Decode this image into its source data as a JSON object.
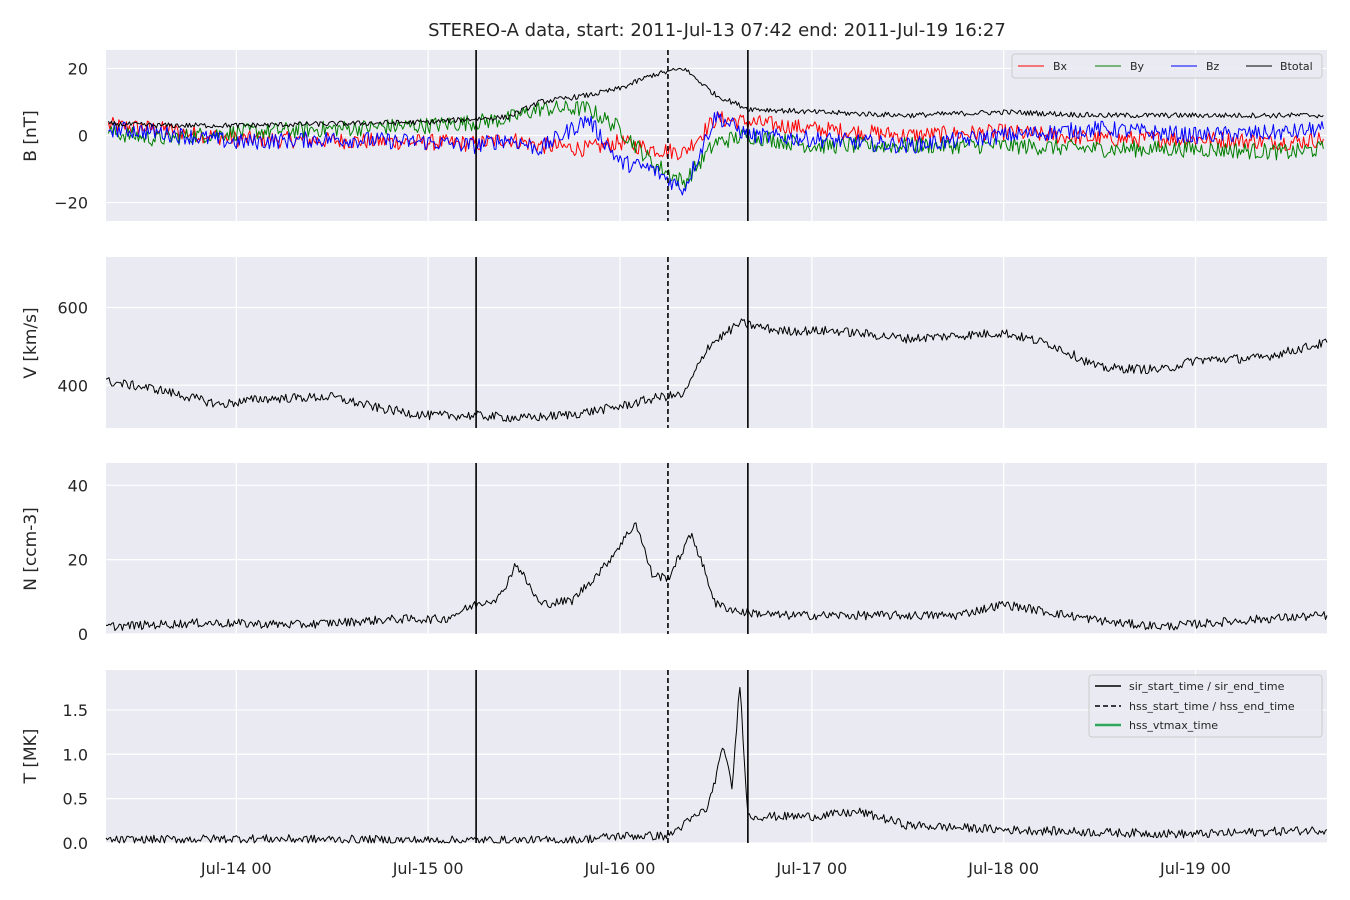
{
  "figure": {
    "title": "STEREO-A data, start: 2011-Jul-13 07:42  end: 2011-Jul-19 16:27"
  },
  "colors": {
    "axes_bg": "#eaeaf2",
    "grid": "#ffffff",
    "Bx": "#ff0000",
    "By": "#008000",
    "Bz": "#0000ff",
    "Btotal": "#000000",
    "sir": "#000000",
    "hss": "#000000",
    "vtmax": "#2ca85a"
  },
  "chart_data": [
    {
      "type": "line",
      "panel": "B",
      "ylabel": "B [nT]",
      "xlim": [
        "2011-07-13 07:42",
        "2011-07-19 16:27"
      ],
      "ylim": [
        -25.5,
        25.5
      ],
      "yticks": [
        -20,
        0,
        20
      ],
      "ytick_labels": [
        "−20",
        "0",
        "20"
      ],
      "grid": true,
      "legend": {
        "placement": "top-right",
        "entries": [
          "Bx",
          "By",
          "Bz",
          "Btotal"
        ]
      },
      "series": [
        {
          "name": "Bx",
          "x": [
            "2011-07-13 08:00",
            "2011-07-13 14:00",
            "2011-07-14 00:00",
            "2011-07-14 12:00",
            "2011-07-15 00:00",
            "2011-07-15 06:00",
            "2011-07-15 10:00",
            "2011-07-15 14:00",
            "2011-07-15 20:00",
            "2011-07-16 00:00",
            "2011-07-16 04:00",
            "2011-07-16 08:00",
            "2011-07-16 12:00",
            "2011-07-16 16:00",
            "2011-07-17 00:00",
            "2011-07-17 12:00",
            "2011-07-18 00:00",
            "2011-07-18 12:00",
            "2011-07-19 00:00",
            "2011-07-19 12:00",
            "2011-07-19 16:00"
          ],
          "values": [
            3,
            2,
            -1,
            -1.5,
            -2,
            -2.5,
            -1,
            -3,
            -4,
            -2,
            -4,
            -5,
            5,
            4,
            2,
            0,
            1,
            -1,
            -1,
            -2,
            -1
          ]
        },
        {
          "name": "By",
          "x": [
            "2011-07-13 08:00",
            "2011-07-13 14:00",
            "2011-07-14 00:00",
            "2011-07-14 12:00",
            "2011-07-15 00:00",
            "2011-07-15 06:00",
            "2011-07-15 10:00",
            "2011-07-15 14:00",
            "2011-07-15 20:00",
            "2011-07-16 00:00",
            "2011-07-16 04:00",
            "2011-07-16 08:00",
            "2011-07-16 12:00",
            "2011-07-16 16:00",
            "2011-07-17 00:00",
            "2011-07-17 12:00",
            "2011-07-18 00:00",
            "2011-07-18 12:00",
            "2011-07-19 00:00",
            "2011-07-19 12:00",
            "2011-07-19 16:00"
          ],
          "values": [
            1,
            -1,
            1,
            2,
            3,
            4,
            5,
            8,
            8,
            2,
            -8,
            -14,
            -2,
            0,
            -3,
            -3,
            -3,
            -4,
            -4,
            -5,
            -4
          ]
        },
        {
          "name": "Bz",
          "x": [
            "2011-07-13 08:00",
            "2011-07-13 14:00",
            "2011-07-14 00:00",
            "2011-07-14 12:00",
            "2011-07-15 00:00",
            "2011-07-15 06:00",
            "2011-07-15 10:00",
            "2011-07-15 14:00",
            "2011-07-15 20:00",
            "2011-07-16 00:00",
            "2011-07-16 04:00",
            "2011-07-16 08:00",
            "2011-07-16 12:00",
            "2011-07-16 16:00",
            "2011-07-17 00:00",
            "2011-07-17 12:00",
            "2011-07-18 00:00",
            "2011-07-18 12:00",
            "2011-07-19 00:00",
            "2011-07-19 12:00",
            "2011-07-19 16:00"
          ],
          "values": [
            2,
            1,
            -2,
            -1,
            -2,
            -3,
            -1,
            -4,
            5,
            -8,
            -10,
            -16,
            6,
            0,
            -1,
            -3,
            0,
            2,
            0,
            1,
            2
          ]
        },
        {
          "name": "Btotal",
          "x": [
            "2011-07-13 08:00",
            "2011-07-13 14:00",
            "2011-07-14 00:00",
            "2011-07-14 12:00",
            "2011-07-15 00:00",
            "2011-07-15 06:00",
            "2011-07-15 10:00",
            "2011-07-15 14:00",
            "2011-07-15 20:00",
            "2011-07-16 00:00",
            "2011-07-16 04:00",
            "2011-07-16 08:00",
            "2011-07-16 12:00",
            "2011-07-16 16:00",
            "2011-07-17 00:00",
            "2011-07-17 12:00",
            "2011-07-18 00:00",
            "2011-07-18 12:00",
            "2011-07-19 00:00",
            "2011-07-19 12:00",
            "2011-07-19 16:00"
          ],
          "values": [
            3.5,
            3,
            3,
            3.5,
            4,
            5,
            5.5,
            10,
            12,
            14,
            18,
            20,
            12,
            8,
            7,
            6,
            7,
            6,
            6,
            6,
            6
          ]
        }
      ]
    },
    {
      "type": "line",
      "panel": "V",
      "ylabel": "V [km/s]",
      "xlim": [
        "2011-07-13 07:42",
        "2011-07-19 16:27"
      ],
      "ylim": [
        290,
        730
      ],
      "yticks": [
        400,
        600
      ],
      "ytick_labels": [
        "400",
        "600"
      ],
      "grid": true,
      "series": [
        {
          "x": [
            "2011-07-13 07:42",
            "2011-07-13 14:00",
            "2011-07-13 22:00",
            "2011-07-14 03:00",
            "2011-07-14 12:00",
            "2011-07-14 18:00",
            "2011-07-15 00:00",
            "2011-07-15 06:00",
            "2011-07-15 12:00",
            "2011-07-15 18:00",
            "2011-07-16 00:00",
            "2011-07-16 05:00",
            "2011-07-16 08:00",
            "2011-07-16 11:00",
            "2011-07-16 15:00",
            "2011-07-16 20:00",
            "2011-07-17 03:00",
            "2011-07-17 12:00",
            "2011-07-18 00:00",
            "2011-07-18 06:00",
            "2011-07-18 12:00",
            "2011-07-18 20:00",
            "2011-07-19 00:00",
            "2011-07-19 08:00",
            "2011-07-19 16:27"
          ],
          "values": [
            410,
            390,
            350,
            365,
            370,
            340,
            322,
            322,
            315,
            325,
            345,
            370,
            375,
            500,
            560,
            540,
            540,
            520,
            535,
            505,
            445,
            440,
            465,
            470,
            510
          ]
        }
      ]
    },
    {
      "type": "line",
      "panel": "N",
      "ylabel": "N [ccm-3]",
      "xlim": [
        "2011-07-13 07:42",
        "2011-07-19 16:27"
      ],
      "ylim": [
        0,
        46
      ],
      "yticks": [
        0,
        20,
        40
      ],
      "ytick_labels": [
        "0",
        "20",
        "40"
      ],
      "grid": true,
      "series": [
        {
          "x": [
            "2011-07-13 07:42",
            "2011-07-13 20:00",
            "2011-07-14 08:00",
            "2011-07-14 20:00",
            "2011-07-15 02:00",
            "2011-07-15 06:00",
            "2011-07-15 09:00",
            "2011-07-15 11:00",
            "2011-07-15 14:00",
            "2011-07-15 18:00",
            "2011-07-15 22:00",
            "2011-07-16 02:00",
            "2011-07-16 04:00",
            "2011-07-16 06:00",
            "2011-07-16 09:00",
            "2011-07-16 12:00",
            "2011-07-16 15:00",
            "2011-07-16 20:00",
            "2011-07-17 06:00",
            "2011-07-17 18:00",
            "2011-07-18 00:00",
            "2011-07-18 08:00",
            "2011-07-18 14:00",
            "2011-07-18 20:00",
            "2011-07-19 08:00",
            "2011-07-19 16:27"
          ],
          "values": [
            2,
            3,
            2.5,
            4,
            4,
            8,
            10,
            19,
            8,
            9,
            18,
            30,
            16,
            15,
            27,
            8,
            6,
            5,
            5,
            5,
            8,
            5,
            3,
            2,
            4,
            5
          ]
        }
      ]
    },
    {
      "type": "line",
      "panel": "T",
      "ylabel": "T [MK]",
      "xlim": [
        "2011-07-13 07:42",
        "2011-07-19 16:27"
      ],
      "ylim": [
        0,
        1.95
      ],
      "yticks": [
        0.0,
        0.5,
        1.0,
        1.5
      ],
      "ytick_labels": [
        "0.0",
        "0.5",
        "1.0",
        "1.5"
      ],
      "grid": true,
      "legend": {
        "placement": "top-right",
        "entries": [
          "sir_start_time / sir_end_time",
          "hss_start_time / hss_end_time",
          "hss_vtmax_time"
        ]
      },
      "series": [
        {
          "x": [
            "2011-07-13 07:42",
            "2011-07-14 00:00",
            "2011-07-15 00:00",
            "2011-07-15 18:00",
            "2011-07-16 00:00",
            "2011-07-16 06:00",
            "2011-07-16 11:00",
            "2011-07-16 13:00",
            "2011-07-16 14:00",
            "2011-07-16 15:00",
            "2011-07-16 16:00",
            "2011-07-16 18:00",
            "2011-07-17 00:00",
            "2011-07-17 06:00",
            "2011-07-17 12:00",
            "2011-07-18 00:00",
            "2011-07-18 12:00",
            "2011-07-19 00:00",
            "2011-07-19 16:27"
          ],
          "values": [
            0.03,
            0.05,
            0.03,
            0.03,
            0.08,
            0.08,
            0.4,
            1.1,
            0.6,
            1.8,
            0.3,
            0.3,
            0.3,
            0.35,
            0.2,
            0.15,
            0.12,
            0.1,
            0.15
          ]
        }
      ]
    }
  ],
  "event_lines": {
    "sir_start_time": "2011-07-15 06:00",
    "hss_start_time": "2011-07-16 06:00",
    "sir_end_time": "2011-07-16 16:00"
  },
  "x_axis": {
    "tick_dates": [
      "2011-07-14 00:00",
      "2011-07-15 00:00",
      "2011-07-16 00:00",
      "2011-07-17 00:00",
      "2011-07-18 00:00",
      "2011-07-19 00:00"
    ],
    "tick_labels": [
      "Jul-14 00",
      "Jul-15 00",
      "Jul-16 00",
      "Jul-17 00",
      "Jul-18 00",
      "Jul-19 00"
    ]
  }
}
